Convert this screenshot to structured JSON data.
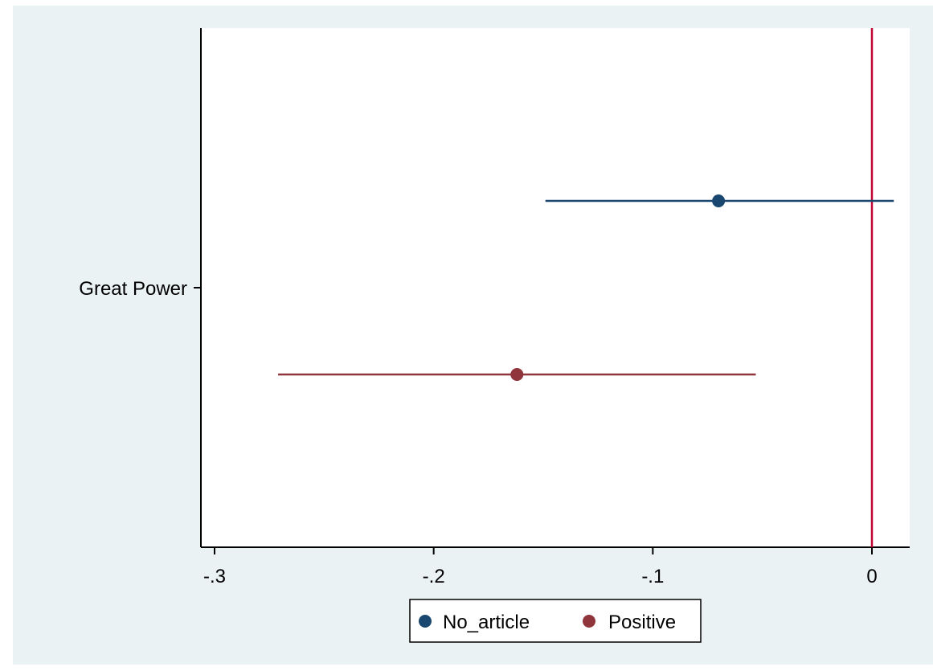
{
  "colors": {
    "outer_background": "#eaf2f3",
    "plot_background": "#ffffff",
    "axis": "#000000",
    "reference_line": "#c10534",
    "series_no_article": "#1a476f",
    "series_positive": "#90353b"
  },
  "chart_data": {
    "type": "scatter",
    "subtype": "coefficient-plot",
    "orientation": "horizontal",
    "categories": [
      "Great Power"
    ],
    "x_ticks": [
      -0.3,
      -0.2,
      -0.1,
      0
    ],
    "x_tick_labels": [
      "-.3",
      "-.2",
      "-.1",
      "0"
    ],
    "xlim": [
      -0.306,
      0.017
    ],
    "reference_line_x": 0,
    "grid": false,
    "legend_position": "bottom",
    "series": [
      {
        "name": "No_article",
        "category": "Great Power",
        "estimate": -0.07,
        "ci_low": -0.149,
        "ci_high": 0.01,
        "color": "#1a476f"
      },
      {
        "name": "Positive",
        "category": "Great Power",
        "estimate": -0.162,
        "ci_low": -0.271,
        "ci_high": -0.053,
        "color": "#90353b"
      }
    ],
    "title": "",
    "xlabel": "",
    "ylabel": ""
  }
}
